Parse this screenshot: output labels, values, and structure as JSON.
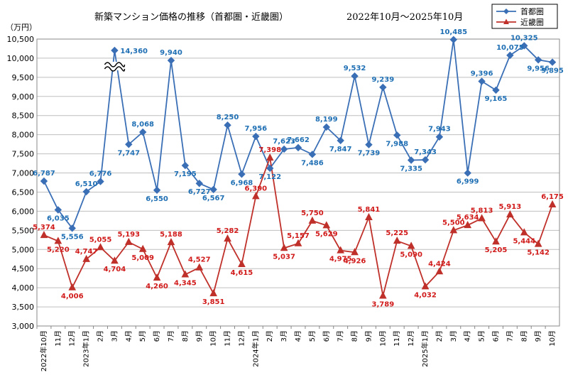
{
  "chart_data": {
    "type": "line",
    "title": "新築マンション価格の推移（首都圏・近畿圏）",
    "subtitle": "2022年10月～2025年10月",
    "ylabel": "（万円）",
    "ylim": [
      3000,
      10500
    ],
    "yticks": [
      3000,
      3500,
      4000,
      4500,
      5000,
      5500,
      6000,
      6500,
      7000,
      7500,
      8000,
      8500,
      9000,
      9500,
      10000,
      10500
    ],
    "ytick_labels": [
      "3,000",
      "3,500",
      "4,000",
      "4,500",
      "5,000",
      "5,500",
      "6,000",
      "6,500",
      "7,000",
      "7,500",
      "8,000",
      "8,500",
      "9,000",
      "9,500",
      "10,000",
      "10,500"
    ],
    "grid": true,
    "legend_position": "top-right",
    "axis_break": "10,000〜10,500 region at 2023年3月 (value beyond axis)",
    "categories": [
      "2022年10月",
      "11月",
      "12月",
      "2023年1月",
      "2月",
      "3月",
      "4月",
      "5月",
      "6月",
      "7月",
      "8月",
      "9月",
      "10月",
      "11月",
      "12月",
      "2024年1月",
      "2月",
      "3月",
      "4月",
      "5月",
      "6月",
      "7月",
      "8月",
      "9月",
      "10月",
      "11月",
      "12月",
      "2025年1月",
      "2月",
      "3月",
      "4月",
      "5月",
      "6月",
      "7月",
      "8月",
      "9月",
      "10月"
    ],
    "series": [
      {
        "name": "首都圏",
        "color": "#3a6fb6",
        "marker": "diamond",
        "values": [
          6787,
          6035,
          5556,
          6510,
          6776,
          14360,
          7747,
          8068,
          6550,
          9940,
          7195,
          6727,
          6567,
          8250,
          6968,
          7956,
          7122,
          7623,
          7662,
          7486,
          8199,
          7847,
          9532,
          7739,
          9239,
          7988,
          7335,
          7343,
          7943,
          10485,
          6999,
          9396,
          9165,
          10075,
          10325,
          9956,
          9895
        ],
        "labels": [
          "6,787",
          "6,035",
          "5,556",
          "6,510",
          "6,776",
          "14,360",
          "7,747",
          "8,068",
          "6,550",
          "9,940",
          "7,195",
          "6,727",
          "6,567",
          "8,250",
          "6,968",
          "7,956",
          "7,122",
          "7,623",
          "7,662",
          "7,486",
          "8,199",
          "7,847",
          "9,532",
          "7,739",
          "9,239",
          "7,988",
          "7,335",
          "7,343",
          "7,943",
          "10,485",
          "6,999",
          "9,396",
          "9,165",
          "10,075",
          "10,325",
          "9,956",
          "9,895"
        ]
      },
      {
        "name": "近畿圏",
        "color": "#c0302a",
        "marker": "triangle",
        "values": [
          5374,
          5220,
          4006,
          4747,
          5055,
          4704,
          5193,
          5009,
          4260,
          5188,
          4345,
          4527,
          3851,
          5282,
          4615,
          6390,
          7398,
          5037,
          5157,
          5750,
          5629,
          4975,
          4926,
          5841,
          3789,
          5225,
          5090,
          4032,
          4424,
          5500,
          5634,
          5813,
          5205,
          5913,
          5444,
          5142,
          6175
        ],
        "labels": [
          "5,374",
          "5,220",
          "4,006",
          "4,747",
          "5,055",
          "4,704",
          "5,193",
          "5,009",
          "4,260",
          "5,188",
          "4,345",
          "4,527",
          "3,851",
          "5,282",
          "4,615",
          "6,390",
          "7,398",
          "5,037",
          "5,157",
          "5,750",
          "5,629",
          "4,975",
          "4,926",
          "5,841",
          "3,789",
          "5,225",
          "5,090",
          "4,032",
          "4,424",
          "5,500",
          "5,634",
          "5,813",
          "5,205",
          "5,913",
          "5,444",
          "5,142",
          "6,175"
        ]
      }
    ]
  }
}
